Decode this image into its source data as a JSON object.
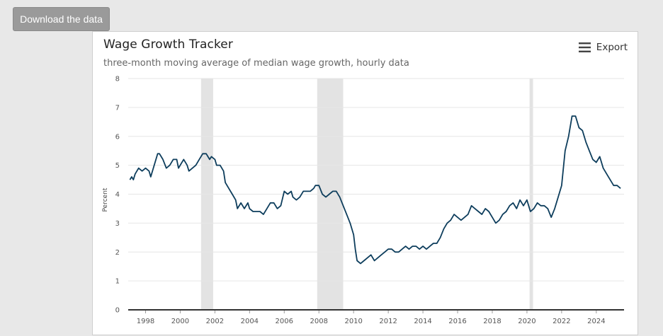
{
  "download_button": {
    "label": "Download the data"
  },
  "export": {
    "label": "Export",
    "icon": "hamburger-menu-icon"
  },
  "colors": {
    "line": "#0d3d5c",
    "recession": "#e3e3e3",
    "grid": "#e6e6e6",
    "axis": "#333333"
  },
  "chart_data": {
    "type": "line",
    "title": "Wage Growth Tracker",
    "subtitle": "three-month moving average of median wage growth, hourly data",
    "ylabel": "Percent",
    "xlabel": "",
    "xlim": [
      1997.0,
      2025.6
    ],
    "ylim": [
      0,
      8
    ],
    "yticks": [
      0,
      1,
      2,
      3,
      4,
      5,
      6,
      7,
      8
    ],
    "xticks": [
      1998,
      2000,
      2002,
      2004,
      2006,
      2008,
      2010,
      2012,
      2014,
      2016,
      2018,
      2020,
      2022,
      2024
    ],
    "grid": "horizontal",
    "recessions": [
      [
        2001.2,
        2001.9
      ],
      [
        2007.9,
        2009.4
      ],
      [
        2020.15,
        2020.35
      ]
    ],
    "series": [
      {
        "points": [
          [
            1997.1,
            4.5
          ],
          [
            1997.2,
            4.6
          ],
          [
            1997.3,
            4.5
          ],
          [
            1997.4,
            4.7
          ],
          [
            1997.6,
            4.9
          ],
          [
            1997.8,
            4.8
          ],
          [
            1998.0,
            4.9
          ],
          [
            1998.2,
            4.8
          ],
          [
            1998.3,
            4.6
          ],
          [
            1998.5,
            5.0
          ],
          [
            1998.7,
            5.4
          ],
          [
            1998.8,
            5.4
          ],
          [
            1999.0,
            5.2
          ],
          [
            1999.2,
            4.9
          ],
          [
            1999.4,
            5.0
          ],
          [
            1999.6,
            5.2
          ],
          [
            1999.8,
            5.2
          ],
          [
            1999.9,
            4.9
          ],
          [
            2000.0,
            5.0
          ],
          [
            2000.2,
            5.2
          ],
          [
            2000.4,
            5.0
          ],
          [
            2000.5,
            4.8
          ],
          [
            2000.7,
            4.9
          ],
          [
            2000.9,
            5.0
          ],
          [
            2001.1,
            5.2
          ],
          [
            2001.3,
            5.4
          ],
          [
            2001.5,
            5.4
          ],
          [
            2001.7,
            5.2
          ],
          [
            2001.8,
            5.3
          ],
          [
            2002.0,
            5.2
          ],
          [
            2002.1,
            5.0
          ],
          [
            2002.3,
            5.0
          ],
          [
            2002.5,
            4.8
          ],
          [
            2002.6,
            4.4
          ],
          [
            2002.8,
            4.2
          ],
          [
            2003.0,
            4.0
          ],
          [
            2003.2,
            3.8
          ],
          [
            2003.3,
            3.5
          ],
          [
            2003.5,
            3.7
          ],
          [
            2003.7,
            3.5
          ],
          [
            2003.9,
            3.7
          ],
          [
            2004.0,
            3.5
          ],
          [
            2004.2,
            3.4
          ],
          [
            2004.4,
            3.4
          ],
          [
            2004.6,
            3.4
          ],
          [
            2004.8,
            3.3
          ],
          [
            2005.0,
            3.5
          ],
          [
            2005.2,
            3.7
          ],
          [
            2005.4,
            3.7
          ],
          [
            2005.6,
            3.5
          ],
          [
            2005.8,
            3.6
          ],
          [
            2006.0,
            4.1
          ],
          [
            2006.2,
            4.0
          ],
          [
            2006.4,
            4.1
          ],
          [
            2006.5,
            3.9
          ],
          [
            2006.7,
            3.8
          ],
          [
            2006.9,
            3.9
          ],
          [
            2007.1,
            4.1
          ],
          [
            2007.3,
            4.1
          ],
          [
            2007.5,
            4.1
          ],
          [
            2007.7,
            4.2
          ],
          [
            2007.8,
            4.3
          ],
          [
            2008.0,
            4.3
          ],
          [
            2008.2,
            4.0
          ],
          [
            2008.4,
            3.9
          ],
          [
            2008.6,
            4.0
          ],
          [
            2008.8,
            4.1
          ],
          [
            2009.0,
            4.1
          ],
          [
            2009.2,
            3.9
          ],
          [
            2009.4,
            3.6
          ],
          [
            2009.6,
            3.3
          ],
          [
            2009.8,
            3.0
          ],
          [
            2010.0,
            2.6
          ],
          [
            2010.1,
            2.1
          ],
          [
            2010.2,
            1.7
          ],
          [
            2010.4,
            1.6
          ],
          [
            2010.6,
            1.7
          ],
          [
            2010.8,
            1.8
          ],
          [
            2011.0,
            1.9
          ],
          [
            2011.2,
            1.7
          ],
          [
            2011.4,
            1.8
          ],
          [
            2011.6,
            1.9
          ],
          [
            2011.8,
            2.0
          ],
          [
            2012.0,
            2.1
          ],
          [
            2012.2,
            2.1
          ],
          [
            2012.4,
            2.0
          ],
          [
            2012.6,
            2.0
          ],
          [
            2012.8,
            2.1
          ],
          [
            2013.0,
            2.2
          ],
          [
            2013.2,
            2.1
          ],
          [
            2013.4,
            2.2
          ],
          [
            2013.6,
            2.2
          ],
          [
            2013.8,
            2.1
          ],
          [
            2014.0,
            2.2
          ],
          [
            2014.2,
            2.1
          ],
          [
            2014.4,
            2.2
          ],
          [
            2014.6,
            2.3
          ],
          [
            2014.8,
            2.3
          ],
          [
            2015.0,
            2.5
          ],
          [
            2015.2,
            2.8
          ],
          [
            2015.4,
            3.0
          ],
          [
            2015.6,
            3.1
          ],
          [
            2015.8,
            3.3
          ],
          [
            2016.0,
            3.2
          ],
          [
            2016.2,
            3.1
          ],
          [
            2016.4,
            3.2
          ],
          [
            2016.6,
            3.3
          ],
          [
            2016.8,
            3.6
          ],
          [
            2017.0,
            3.5
          ],
          [
            2017.2,
            3.4
          ],
          [
            2017.4,
            3.3
          ],
          [
            2017.6,
            3.5
          ],
          [
            2017.8,
            3.4
          ],
          [
            2018.0,
            3.2
          ],
          [
            2018.2,
            3.0
          ],
          [
            2018.4,
            3.1
          ],
          [
            2018.6,
            3.3
          ],
          [
            2018.8,
            3.4
          ],
          [
            2019.0,
            3.6
          ],
          [
            2019.2,
            3.7
          ],
          [
            2019.4,
            3.5
          ],
          [
            2019.6,
            3.8
          ],
          [
            2019.8,
            3.6
          ],
          [
            2020.0,
            3.8
          ],
          [
            2020.2,
            3.4
          ],
          [
            2020.4,
            3.5
          ],
          [
            2020.6,
            3.7
          ],
          [
            2020.8,
            3.6
          ],
          [
            2021.0,
            3.6
          ],
          [
            2021.2,
            3.5
          ],
          [
            2021.4,
            3.2
          ],
          [
            2021.6,
            3.5
          ],
          [
            2021.8,
            3.9
          ],
          [
            2022.0,
            4.3
          ],
          [
            2022.2,
            5.5
          ],
          [
            2022.4,
            6.0
          ],
          [
            2022.6,
            6.7
          ],
          [
            2022.8,
            6.7
          ],
          [
            2023.0,
            6.3
          ],
          [
            2023.2,
            6.2
          ],
          [
            2023.4,
            5.8
          ],
          [
            2023.6,
            5.5
          ],
          [
            2023.8,
            5.2
          ],
          [
            2024.0,
            5.1
          ],
          [
            2024.2,
            5.3
          ],
          [
            2024.4,
            4.9
          ],
          [
            2024.6,
            4.7
          ],
          [
            2024.8,
            4.5
          ],
          [
            2025.0,
            4.3
          ],
          [
            2025.2,
            4.3
          ],
          [
            2025.4,
            4.2
          ]
        ]
      }
    ]
  }
}
